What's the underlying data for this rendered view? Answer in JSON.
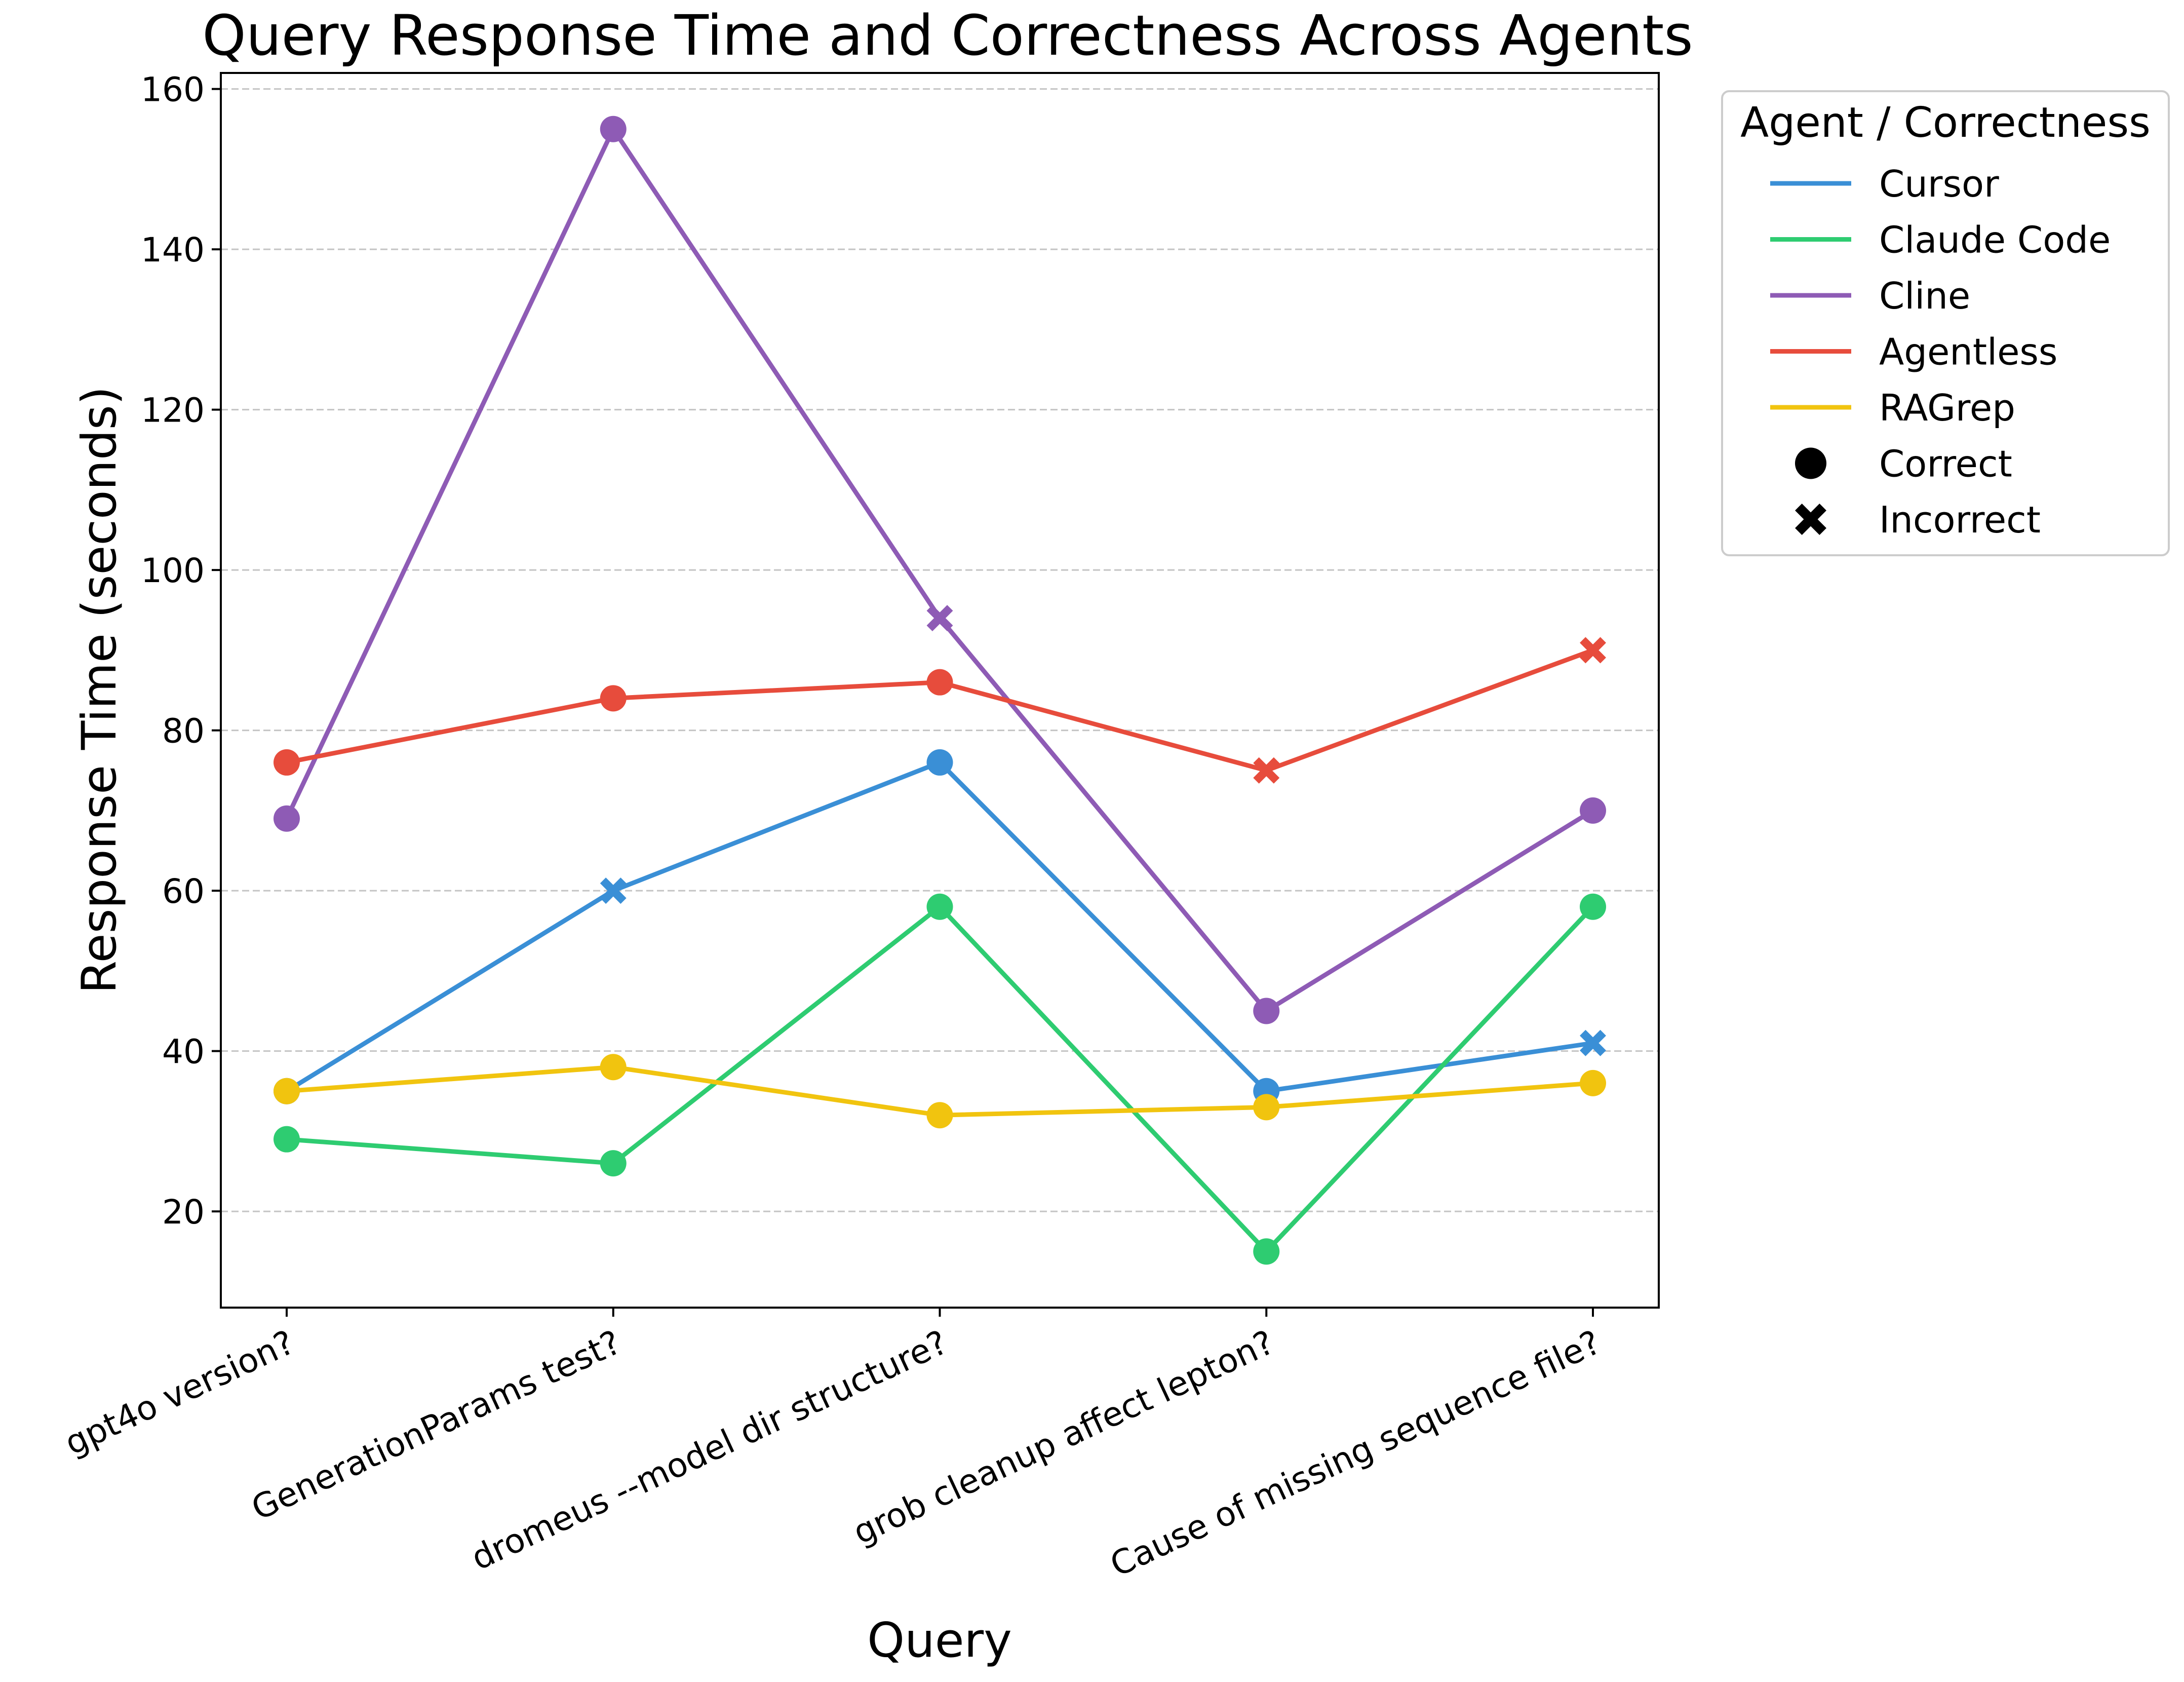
{
  "chart_data": {
    "type": "line",
    "title": "Query Response Time and Correctness Across Agents",
    "xlabel": "Query",
    "ylabel": "Response Time (seconds)",
    "categories": [
      "gpt4o version?",
      "GenerationParams test?",
      "dromeus --model dir structure?",
      "grob cleanup affect lepton?",
      "Cause of missing sequence file?"
    ],
    "ylim": [
      8,
      162
    ],
    "yticks": [
      20,
      40,
      60,
      80,
      100,
      120,
      140,
      160
    ],
    "grid": "horizontal dashed",
    "legend": {
      "title": "Agent / Correctness",
      "placement": "outside right, top",
      "marker_entries": [
        {
          "label": "Correct",
          "marker": "circle"
        },
        {
          "label": "Incorrect",
          "marker": "x"
        }
      ]
    },
    "series": [
      {
        "name": "Cursor",
        "color": "#3a8fd6",
        "values": [
          35,
          60,
          76,
          35,
          41
        ],
        "correct": [
          true,
          false,
          true,
          true,
          false
        ]
      },
      {
        "name": "Claude Code",
        "color": "#2ecc71",
        "values": [
          29,
          26,
          58,
          15,
          58
        ],
        "correct": [
          true,
          true,
          true,
          true,
          true
        ]
      },
      {
        "name": "Cline",
        "color": "#8e5bb5",
        "values": [
          69,
          155,
          94,
          45,
          70
        ],
        "correct": [
          true,
          true,
          false,
          true,
          true
        ]
      },
      {
        "name": "Agentless",
        "color": "#e74c3c",
        "values": [
          76,
          84,
          86,
          75,
          90
        ],
        "correct": [
          true,
          true,
          true,
          false,
          false
        ]
      },
      {
        "name": "RAGrep",
        "color": "#f1c40f",
        "values": [
          35,
          38,
          32,
          33,
          36
        ],
        "correct": [
          true,
          true,
          true,
          true,
          true
        ]
      }
    ]
  }
}
